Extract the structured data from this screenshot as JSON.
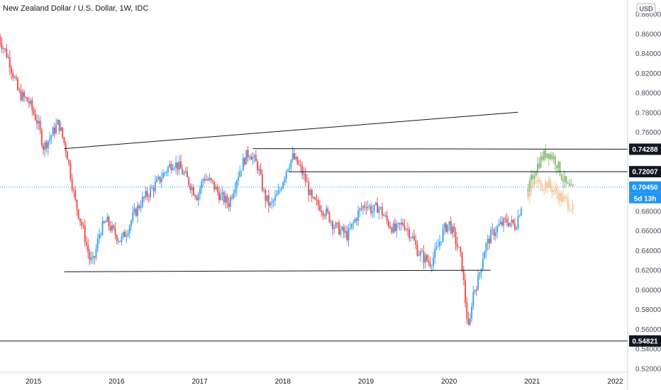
{
  "header": {
    "title": "New Zealand Dollar / U.S. Dollar, 1W, IDC"
  },
  "scale": {
    "currency_button": "USD"
  },
  "chart_data": {
    "type": "candlestick",
    "title": "New Zealand Dollar / U.S. Dollar, 1W, IDC",
    "xlabel": "",
    "ylabel": "",
    "ylim": [
      0.52,
      0.88
    ],
    "xlim": [
      2014.58,
      2022.55
    ],
    "y_ticks": [
      "0.52000",
      "0.54000",
      "0.56000",
      "0.58000",
      "0.60000",
      "0.62000",
      "0.64000",
      "0.66000",
      "0.68000",
      "0.70000",
      "0.72000",
      "0.74000",
      "0.76000",
      "0.78000",
      "0.80000",
      "0.82000",
      "0.84000",
      "0.86000",
      "0.88000"
    ],
    "x_ticks": [
      "2015",
      "2016",
      "2017",
      "2018",
      "2019",
      "2020",
      "2021",
      "2022"
    ],
    "colors": {
      "up": "#42a5f5",
      "down": "#ef5350",
      "projection_up": "#8fc07e",
      "projection_down": "#f5c89a",
      "line": "#131722",
      "current_price": "#2196f3"
    },
    "price_path": [
      [
        2014.58,
        0.857
      ],
      [
        2014.7,
        0.835
      ],
      [
        2014.82,
        0.8
      ],
      [
        2014.95,
        0.79
      ],
      [
        2015.05,
        0.77
      ],
      [
        2015.12,
        0.745
      ],
      [
        2015.2,
        0.755
      ],
      [
        2015.3,
        0.77
      ],
      [
        2015.4,
        0.74
      ],
      [
        2015.5,
        0.69
      ],
      [
        2015.6,
        0.66
      ],
      [
        2015.68,
        0.63
      ],
      [
        2015.72,
        0.628
      ],
      [
        2015.8,
        0.66
      ],
      [
        2015.88,
        0.67
      ],
      [
        2015.95,
        0.66
      ],
      [
        2016.05,
        0.65
      ],
      [
        2016.12,
        0.66
      ],
      [
        2016.2,
        0.675
      ],
      [
        2016.3,
        0.69
      ],
      [
        2016.4,
        0.7
      ],
      [
        2016.5,
        0.71
      ],
      [
        2016.6,
        0.722
      ],
      [
        2016.68,
        0.73
      ],
      [
        2016.75,
        0.725
      ],
      [
        2016.83,
        0.715
      ],
      [
        2016.9,
        0.705
      ],
      [
        2016.97,
        0.695
      ],
      [
        2017.05,
        0.715
      ],
      [
        2017.15,
        0.708
      ],
      [
        2017.25,
        0.695
      ],
      [
        2017.35,
        0.688
      ],
      [
        2017.45,
        0.715
      ],
      [
        2017.55,
        0.735
      ],
      [
        2017.6,
        0.74
      ],
      [
        2017.7,
        0.725
      ],
      [
        2017.78,
        0.695
      ],
      [
        2017.85,
        0.685
      ],
      [
        2017.95,
        0.698
      ],
      [
        2018.05,
        0.725
      ],
      [
        2018.12,
        0.735
      ],
      [
        2018.2,
        0.725
      ],
      [
        2018.28,
        0.71
      ],
      [
        2018.35,
        0.69
      ],
      [
        2018.45,
        0.685
      ],
      [
        2018.55,
        0.675
      ],
      [
        2018.62,
        0.665
      ],
      [
        2018.7,
        0.66
      ],
      [
        2018.78,
        0.655
      ],
      [
        2018.85,
        0.668
      ],
      [
        2018.92,
        0.68
      ],
      [
        2019.0,
        0.688
      ],
      [
        2019.08,
        0.68
      ],
      [
        2019.15,
        0.685
      ],
      [
        2019.25,
        0.67
      ],
      [
        2019.35,
        0.66
      ],
      [
        2019.45,
        0.668
      ],
      [
        2019.55,
        0.655
      ],
      [
        2019.62,
        0.64
      ],
      [
        2019.7,
        0.632
      ],
      [
        2019.78,
        0.628
      ],
      [
        2019.85,
        0.64
      ],
      [
        2019.93,
        0.66
      ],
      [
        2020.0,
        0.668
      ],
      [
        2020.08,
        0.65
      ],
      [
        2020.15,
        0.63
      ],
      [
        2020.2,
        0.585
      ],
      [
        2020.24,
        0.555
      ],
      [
        2020.28,
        0.595
      ],
      [
        2020.35,
        0.61
      ],
      [
        2020.42,
        0.64
      ],
      [
        2020.5,
        0.655
      ],
      [
        2020.6,
        0.665
      ],
      [
        2020.7,
        0.67
      ],
      [
        2020.8,
        0.665
      ],
      [
        2020.88,
        0.69
      ]
    ],
    "projection_up": [
      [
        2020.95,
        0.7
      ],
      [
        2021.0,
        0.715
      ],
      [
        2021.05,
        0.725
      ],
      [
        2021.12,
        0.735
      ],
      [
        2021.18,
        0.74
      ],
      [
        2021.25,
        0.735
      ],
      [
        2021.3,
        0.728
      ],
      [
        2021.36,
        0.715
      ],
      [
        2021.42,
        0.705
      ],
      [
        2021.48,
        0.7
      ],
      [
        2021.5,
        0.705
      ]
    ],
    "projection_down": [
      [
        2020.95,
        0.698
      ],
      [
        2021.0,
        0.705
      ],
      [
        2021.05,
        0.71
      ],
      [
        2021.12,
        0.706
      ],
      [
        2021.18,
        0.708
      ],
      [
        2021.25,
        0.702
      ],
      [
        2021.3,
        0.698
      ],
      [
        2021.36,
        0.692
      ],
      [
        2021.42,
        0.69
      ],
      [
        2021.48,
        0.683
      ],
      [
        2021.5,
        0.68
      ]
    ],
    "trendlines": [
      {
        "from": [
          2015.37,
          0.7435
        ],
        "to": [
          2020.83,
          0.7805
        ]
      },
      {
        "from": [
          2015.37,
          0.6185
        ],
        "to": [
          2020.5,
          0.62
        ]
      },
      {
        "from": [
          2017.64,
          0.7435
        ],
        "to": [
          2022.55,
          0.7429
        ]
      },
      {
        "from": [
          2018.07,
          0.72
        ],
        "to": [
          2022.55,
          0.7201
        ]
      },
      {
        "from": [
          2014.58,
          0.5482
        ],
        "to": [
          2022.55,
          0.5482
        ]
      }
    ],
    "current_price": 0.7045,
    "price_labels": [
      {
        "value": 0.74288,
        "text": "0.74288",
        "style": "dark"
      },
      {
        "value": 0.72007,
        "text": "0.72007",
        "style": "dark"
      },
      {
        "value": 0.7045,
        "text": "0.70450",
        "style": "blue"
      },
      {
        "value": 0.54821,
        "text": "0.54821",
        "style": "dark"
      }
    ],
    "countdown": "5d 13h"
  }
}
